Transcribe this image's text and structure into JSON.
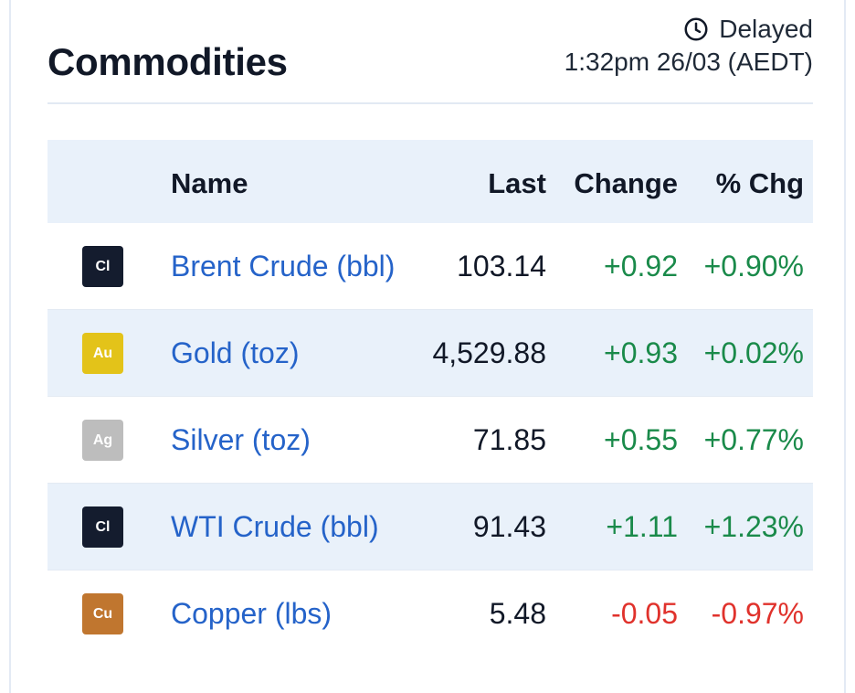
{
  "widget": {
    "title": "Commodities",
    "status": "Delayed",
    "timestamp": "1:32pm 26/03 (AEDT)"
  },
  "table": {
    "headers": {
      "name": "Name",
      "last": "Last",
      "change": "Change",
      "pct": "% Chg"
    },
    "rows": [
      {
        "symbol": "Cl",
        "badge_color": "#141c2e",
        "name": "Brent Crude (bbl)",
        "last": "103.14",
        "change": "+0.92",
        "pct": "+0.90%",
        "direction": "up"
      },
      {
        "symbol": "Au",
        "badge_color": "#e3c319",
        "name": "Gold (toz)",
        "last": "4,529.88",
        "change": "+0.93",
        "pct": "+0.02%",
        "direction": "up"
      },
      {
        "symbol": "Ag",
        "badge_color": "#bdbdbd",
        "name": "Silver (toz)",
        "last": "71.85",
        "change": "+0.55",
        "pct": "+0.77%",
        "direction": "up"
      },
      {
        "symbol": "Cl",
        "badge_color": "#141c2e",
        "name": "WTI Crude (bbl)",
        "last": "91.43",
        "change": "+1.11",
        "pct": "+1.23%",
        "direction": "up"
      },
      {
        "symbol": "Cu",
        "badge_color": "#c0762f",
        "name": "Copper (lbs)",
        "last": "5.48",
        "change": "-0.05",
        "pct": "-0.97%",
        "direction": "down"
      }
    ]
  },
  "colors": {
    "positive": "#1a8a4a",
    "negative": "#e0322c",
    "link": "#2563c9"
  },
  "icons": {
    "status": "clock-icon"
  }
}
